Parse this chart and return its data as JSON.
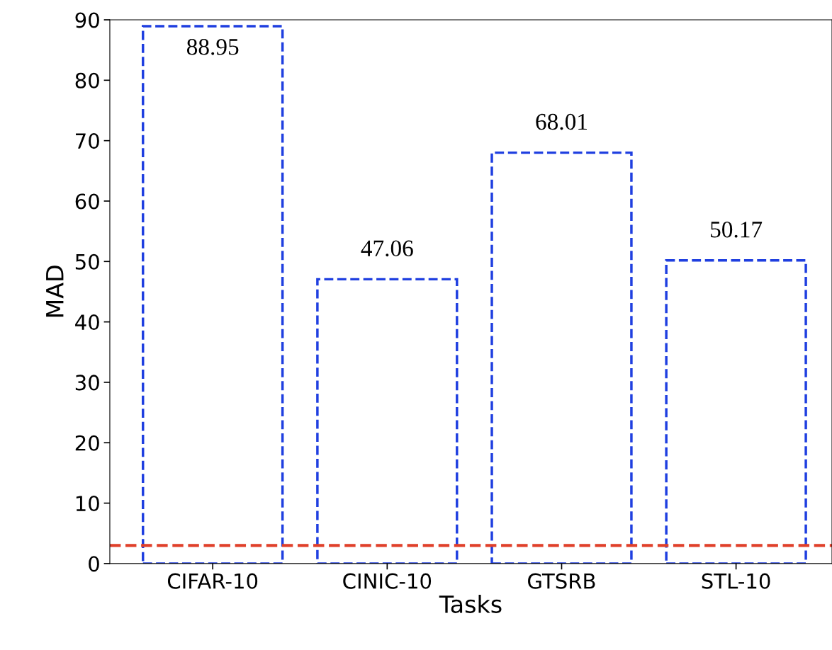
{
  "chart_data": {
    "type": "bar",
    "xlabel": "Tasks",
    "ylabel": "MAD",
    "categories": [
      "CIFAR-10",
      "CINIC-10",
      "GTSRB",
      "STL-10"
    ],
    "values": [
      88.95,
      47.06,
      68.01,
      50.17
    ],
    "color": "#1f3fe0",
    "line_style": "dashed",
    "data_labels": true,
    "ylim": [
      0,
      90
    ],
    "yticks": [
      0,
      10,
      20,
      30,
      40,
      50,
      60,
      70,
      80,
      90
    ],
    "grid": false,
    "legend": false,
    "ref_lines": [
      {
        "axis": "y",
        "value": 3,
        "color": "#e0402a",
        "line_style": "dashed"
      }
    ]
  }
}
